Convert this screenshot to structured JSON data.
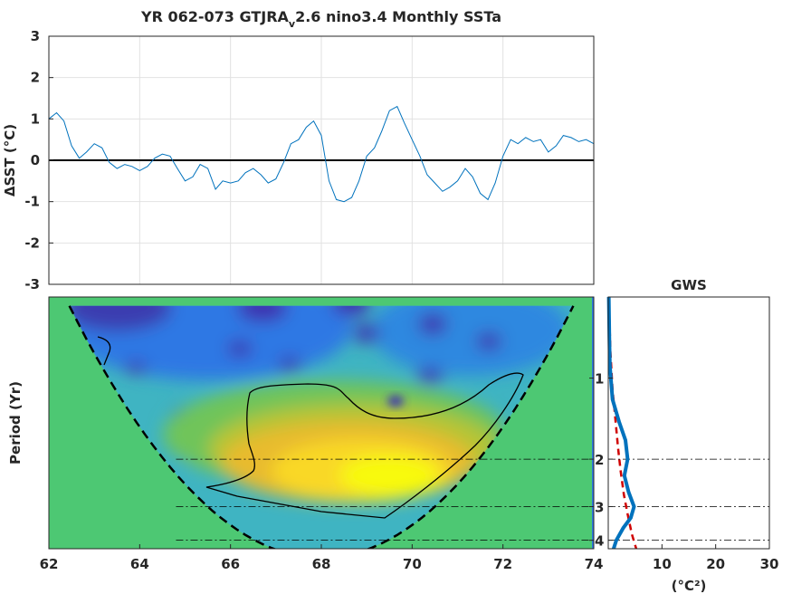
{
  "figure": {
    "title_prefix": "YR 062-073 GTJRA",
    "title_subscript": "v",
    "title_suffix": "2.6 nino3.4 Monthly SSTa"
  },
  "chart_data": [
    {
      "type": "line",
      "title": "YR 062-073 GTJRA_v2.6 nino3.4 Monthly SSTa",
      "ylabel": "ΔSST (°C)",
      "xlim": [
        62,
        74
      ],
      "ylim": [
        -3,
        3
      ],
      "yticks": [
        -3,
        -2,
        -1,
        0,
        1,
        2,
        3
      ],
      "grid": true,
      "zero_line": true,
      "series": [
        {
          "color": "#0072BD",
          "x": [
            62.0,
            62.17,
            62.33,
            62.5,
            62.67,
            62.83,
            63.0,
            63.17,
            63.33,
            63.5,
            63.67,
            63.83,
            64.0,
            64.17,
            64.33,
            64.5,
            64.67,
            64.83,
            65.0,
            65.17,
            65.33,
            65.5,
            65.67,
            65.83,
            66.0,
            66.17,
            66.33,
            66.5,
            66.67,
            66.83,
            67.0,
            67.17,
            67.33,
            67.5,
            67.67,
            67.83,
            68.0,
            68.17,
            68.33,
            68.5,
            68.67,
            68.83,
            69.0,
            69.17,
            69.33,
            69.5,
            69.67,
            69.83,
            70.0,
            70.17,
            70.33,
            70.5,
            70.67,
            70.83,
            71.0,
            71.17,
            71.33,
            71.5,
            71.67,
            71.83,
            72.0,
            72.17,
            72.33,
            72.5,
            72.67,
            72.83,
            73.0,
            73.17,
            73.33,
            73.5,
            73.67,
            73.83,
            74.0
          ],
          "y": [
            1.0,
            1.15,
            0.95,
            0.35,
            0.05,
            0.2,
            0.4,
            0.3,
            -0.05,
            -0.2,
            -0.1,
            -0.15,
            -0.25,
            -0.15,
            0.05,
            0.15,
            0.1,
            -0.2,
            -0.5,
            -0.4,
            -0.1,
            -0.2,
            -0.7,
            -0.5,
            -0.55,
            -0.5,
            -0.3,
            -0.2,
            -0.35,
            -0.55,
            -0.45,
            -0.05,
            0.4,
            0.5,
            0.8,
            0.95,
            0.6,
            -0.5,
            -0.95,
            -1.0,
            -0.9,
            -0.5,
            0.1,
            0.3,
            0.7,
            1.2,
            1.3,
            0.9,
            0.5,
            0.1,
            -0.35,
            -0.55,
            -0.75,
            -0.65,
            -0.5,
            -0.2,
            -0.4,
            -0.8,
            -0.95,
            -0.55,
            0.1,
            0.5,
            0.4,
            0.55,
            0.45,
            0.5,
            0.2,
            0.35,
            0.6,
            0.55,
            0.45,
            0.5,
            0.4
          ]
        }
      ]
    },
    {
      "type": "heatmap",
      "ylabel": "Period (Yr)",
      "xlim": [
        62,
        74
      ],
      "xticks": [
        62,
        64,
        66,
        68,
        70,
        72,
        74
      ],
      "ylim_period": [
        0.5,
        4.3
      ],
      "yscale": "log2",
      "yticks": [
        1,
        2,
        3,
        4
      ],
      "colormap": "parula",
      "cone_of_influence": "dashed",
      "significance_contour": "solid",
      "power_peak": {
        "time": 68.9,
        "period": 2.3
      }
    },
    {
      "type": "line",
      "title": "GWS",
      "xlabel": "(°C²)",
      "xlim": [
        0,
        30
      ],
      "xticks": [
        10,
        20,
        30
      ],
      "yscale": "log2",
      "yticks": [
        1,
        2,
        3,
        4
      ],
      "reference_lines_period": [
        2,
        3,
        4
      ],
      "series": [
        {
          "color": "#0072BD",
          "style": "solid",
          "points": [
            [
              0.1,
              0.5
            ],
            [
              0.2,
              0.7
            ],
            [
              0.3,
              0.9
            ],
            [
              0.8,
              1.2
            ],
            [
              2.0,
              1.45
            ],
            [
              3.2,
              1.7
            ],
            [
              3.6,
              2.0
            ],
            [
              3.0,
              2.3
            ],
            [
              3.8,
              2.65
            ],
            [
              4.8,
              3.0
            ],
            [
              4.2,
              3.3
            ],
            [
              2.8,
              3.6
            ],
            [
              1.5,
              4.0
            ],
            [
              1.0,
              4.3
            ]
          ]
        },
        {
          "color": "#D00000",
          "style": "dashed",
          "points": [
            [
              0.1,
              0.5
            ],
            [
              0.4,
              0.8
            ],
            [
              0.8,
              1.1
            ],
            [
              1.3,
              1.4
            ],
            [
              1.8,
              1.8
            ],
            [
              2.3,
              2.2
            ],
            [
              2.9,
              2.7
            ],
            [
              3.6,
              3.2
            ],
            [
              4.4,
              3.8
            ],
            [
              5.2,
              4.3
            ]
          ]
        }
      ]
    }
  ]
}
